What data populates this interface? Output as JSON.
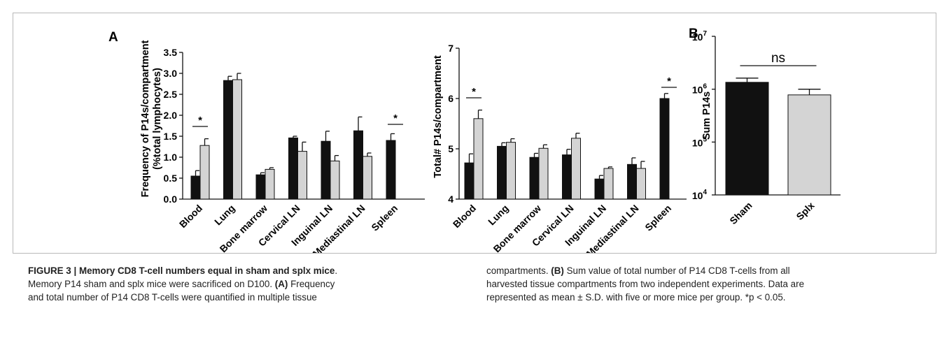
{
  "panels": {
    "a_label": "A",
    "b_label": "B"
  },
  "chart_data": [
    {
      "type": "bar",
      "ylabel": "Frequency of P14s/compartment",
      "ylabel2": "(%total lymphocytes)",
      "ylim": [
        0,
        3.5
      ],
      "yticks": [
        "0.0",
        "0.5",
        "1.0",
        "1.5",
        "2.0",
        "2.5",
        "3.0",
        "3.5"
      ],
      "categories": [
        "Blood",
        "Lung",
        "Bone marrow",
        "Cervical LN",
        "Inguinal LN",
        "Mediastinal LN",
        "Spleen"
      ],
      "series": [
        {
          "color": "#111111",
          "values": [
            0.55,
            2.83,
            0.58,
            1.46,
            1.38,
            1.63,
            1.4
          ],
          "errors": [
            0.13,
            0.1,
            0.05,
            0.04,
            0.24,
            0.33,
            0.16
          ]
        },
        {
          "color": "#d4d4d4",
          "values": [
            1.28,
            2.85,
            0.71,
            1.14,
            0.91,
            1.02,
            null
          ],
          "errors": [
            0.16,
            0.15,
            0.04,
            0.22,
            0.13,
            0.08,
            null
          ]
        }
      ],
      "significance": [
        {
          "category": "Blood",
          "label": "*"
        },
        {
          "category": "Spleen",
          "label": "*"
        }
      ],
      "grid": false
    },
    {
      "type": "bar",
      "ylabel": "Total# P14s/compartment",
      "ylim": [
        4,
        7
      ],
      "yticks": [
        "4",
        "5",
        "6",
        "7"
      ],
      "categories": [
        "Blood",
        "Lung",
        "Bone marrow",
        "Cervical LN",
        "Inguinal LN",
        "Mediastinal LN",
        "Spleen"
      ],
      "series": [
        {
          "color": "#111111",
          "values": [
            4.72,
            5.05,
            4.83,
            4.88,
            4.4,
            4.69,
            6.0
          ],
          "errors": [
            0.18,
            0.07,
            0.08,
            0.11,
            0.07,
            0.13,
            0.1
          ]
        },
        {
          "color": "#d4d4d4",
          "values": [
            5.6,
            5.13,
            5.01,
            5.21,
            4.61,
            4.61,
            null
          ],
          "errors": [
            0.17,
            0.07,
            0.07,
            0.1,
            0.03,
            0.14,
            null
          ]
        }
      ],
      "significance": [
        {
          "category": "Blood",
          "label": "*"
        },
        {
          "category": "Spleen",
          "label": "*"
        }
      ],
      "grid": false
    },
    {
      "type": "bar",
      "ylabel": "Sum P14s",
      "scale": "log",
      "ylim": [
        10000,
        10000000
      ],
      "yticks": [
        {
          "base": "10",
          "exp": "4"
        },
        {
          "base": "10",
          "exp": "5"
        },
        {
          "base": "10",
          "exp": "6"
        },
        {
          "base": "10",
          "exp": "7"
        }
      ],
      "categories": [
        "Sham",
        "Splx"
      ],
      "values": [
        1350000,
        780000
      ],
      "error_upper": [
        1620000,
        1000000
      ],
      "colors": [
        "#111111",
        "#d4d4d4"
      ],
      "significance": [
        {
          "label": "ns"
        }
      ],
      "grid": false
    }
  ],
  "caption": {
    "left_lines": [
      {
        "bold": "FIGURE 3 | Memory CD8 T-cell numbers equal in sham and splx mice",
        "text": "."
      },
      {
        "text": "Memory P14 sham and splx mice were sacrificed on D100. ",
        "bold2": "(A)",
        "text2": " Frequency"
      },
      {
        "text": "and total number of P14 CD8 T-cells were quantified in multiple tissue"
      }
    ],
    "right_lines": [
      {
        "text": "compartments. ",
        "bold2": "(B)",
        "text2": " Sum value of total number of P14 CD8 T-cells from all"
      },
      {
        "text": "harvested tissue compartments from two independent experiments. Data are"
      },
      {
        "text": "represented as mean ± S.D. with five or more mice per group. *p < 0.05."
      }
    ]
  }
}
